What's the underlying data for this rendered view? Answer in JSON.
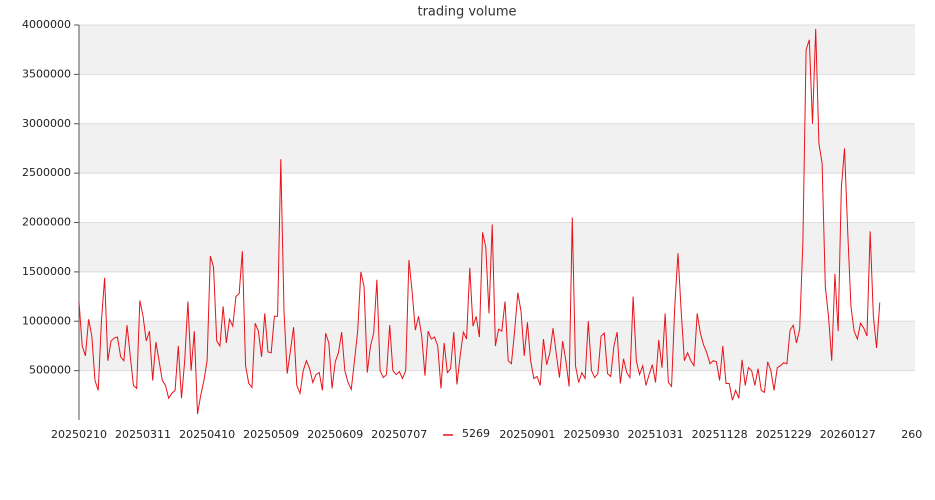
{
  "chart_data": {
    "type": "line",
    "title": "trading volume",
    "xlim": [
      0,
      261
    ],
    "xticks": [
      {
        "value": 0,
        "label": "20250210"
      },
      {
        "value": 20,
        "label": "20250311"
      },
      {
        "value": 40,
        "label": "20250410"
      },
      {
        "value": 60,
        "label": "20250509"
      },
      {
        "value": 80,
        "label": "20250609"
      },
      {
        "value": 100,
        "label": "20250707"
      },
      {
        "value": 140,
        "label": "20250901"
      },
      {
        "value": 160,
        "label": "20250930"
      },
      {
        "value": 180,
        "label": "20251031"
      },
      {
        "value": 200,
        "label": "20251128"
      },
      {
        "value": 220,
        "label": "20251229"
      },
      {
        "value": 240,
        "label": "20260127"
      },
      {
        "value": 260,
        "label": "260"
      }
    ],
    "ylim": [
      0,
      4000000
    ],
    "yticks": [
      500000,
      1000000,
      1500000,
      2000000,
      2500000,
      3000000,
      3500000,
      4000000
    ],
    "grid": true,
    "series": [
      {
        "name": "5269",
        "color": "#e8131a",
        "values": [
          1200000,
          750000,
          650000,
          1020000,
          850000,
          400000,
          300000,
          1000000,
          1440000,
          600000,
          800000,
          830000,
          840000,
          640000,
          600000,
          960000,
          650000,
          350000,
          320000,
          1210000,
          1050000,
          800000,
          900000,
          400000,
          790000,
          600000,
          400000,
          350000,
          220000,
          270000,
          300000,
          750000,
          220000,
          600000,
          1200000,
          500000,
          900000,
          60000,
          250000,
          400000,
          600000,
          1660000,
          1550000,
          800000,
          750000,
          1150000,
          780000,
          1020000,
          950000,
          1250000,
          1280000,
          1710000,
          550000,
          370000,
          330000,
          980000,
          900000,
          640000,
          1080000,
          690000,
          680000,
          1050000,
          1050000,
          2640000,
          1100000,
          470000,
          700000,
          940000,
          350000,
          270000,
          500000,
          600000,
          520000,
          380000,
          460000,
          480000,
          300000,
          880000,
          780000,
          320000,
          590000,
          680000,
          890000,
          500000,
          380000,
          310000,
          600000,
          900000,
          1500000,
          1350000,
          480000,
          750000,
          880000,
          1420000,
          500000,
          430000,
          460000,
          960000,
          500000,
          460000,
          490000,
          420000,
          500000,
          1620000,
          1300000,
          910000,
          1050000,
          850000,
          450000,
          900000,
          820000,
          840000,
          750000,
          320000,
          780000,
          480000,
          520000,
          890000,
          360000,
          650000,
          890000,
          820000,
          1540000,
          950000,
          1050000,
          840000,
          1900000,
          1750000,
          1080000,
          1980000,
          750000,
          920000,
          900000,
          1200000,
          600000,
          570000,
          900000,
          1290000,
          1100000,
          650000,
          990000,
          600000,
          420000,
          440000,
          350000,
          820000,
          560000,
          680000,
          930000,
          670000,
          430000,
          800000,
          600000,
          340000,
          2050000,
          550000,
          380000,
          480000,
          420000,
          1000000,
          500000,
          430000,
          470000,
          850000,
          880000,
          470000,
          440000,
          750000,
          890000,
          370000,
          620000,
          480000,
          430000,
          1250000,
          600000,
          460000,
          550000,
          350000,
          460000,
          560000,
          380000,
          810000,
          530000,
          1080000,
          380000,
          340000,
          1150000,
          1690000,
          1100000,
          600000,
          680000,
          600000,
          550000,
          1080000,
          880000,
          760000,
          680000,
          570000,
          600000,
          590000,
          400000,
          750000,
          370000,
          370000,
          200000,
          300000,
          220000,
          610000,
          350000,
          530000,
          500000,
          350000,
          520000,
          300000,
          280000,
          590000,
          500000,
          300000,
          530000,
          550000,
          580000,
          570000,
          910000,
          960000,
          780000,
          920000,
          1800000,
          3750000,
          3850000,
          3000000,
          3960000,
          2800000,
          2600000,
          1350000,
          1050000,
          600000,
          1480000,
          900000,
          2350000,
          2750000,
          1900000,
          1150000,
          900000,
          820000,
          980000,
          930000,
          850000,
          1910000,
          1050000,
          730000,
          1190000
        ]
      }
    ]
  }
}
